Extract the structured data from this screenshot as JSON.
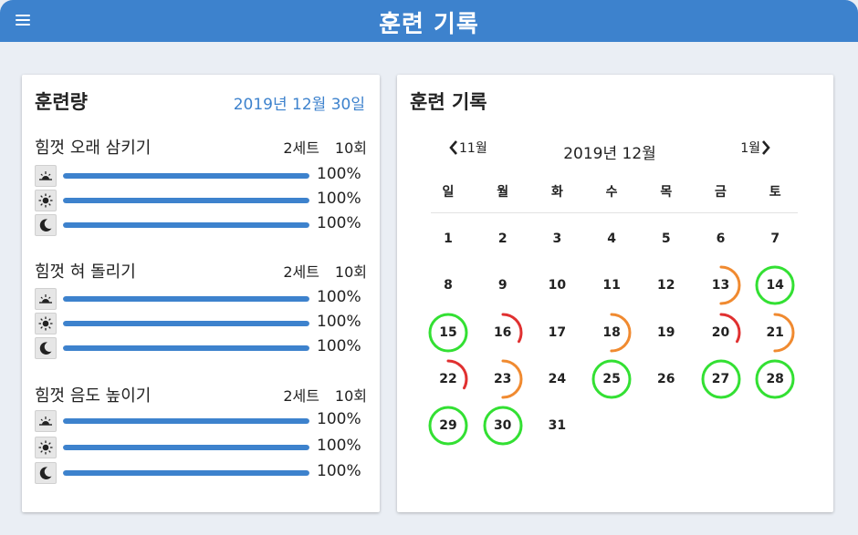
{
  "app": {
    "title": "훈련 기록"
  },
  "left": {
    "title": "훈련량",
    "date": "2019년 12월 30일",
    "exercises": [
      {
        "name": "힘껏 오래 삼키기",
        "sets": "2세트",
        "reps": "10회",
        "rows": [
          {
            "icon": "sunrise-icon",
            "label": "100%",
            "value": 1.0
          },
          {
            "icon": "sun-icon",
            "label": "100%",
            "value": 1.0
          },
          {
            "icon": "moon-icon",
            "label": "100%",
            "value": 1.0
          }
        ]
      },
      {
        "name": "힘껏 혀 돌리기",
        "sets": "2세트",
        "reps": "10회",
        "rows": [
          {
            "icon": "sunrise-icon",
            "label": "100%",
            "value": 1.0
          },
          {
            "icon": "sun-icon",
            "label": "100%",
            "value": 1.0
          },
          {
            "icon": "moon-icon",
            "label": "100%",
            "value": 1.0
          }
        ]
      },
      {
        "name": "힘껏 음도 높이기",
        "sets": "2세트",
        "reps": "10회",
        "rows": [
          {
            "icon": "sunrise-icon",
            "label": "100%",
            "value": 1.0
          },
          {
            "icon": "sun-icon",
            "label": "100%",
            "value": 1.0
          },
          {
            "icon": "moon-icon",
            "label": "100%",
            "value": 1.0
          }
        ]
      }
    ]
  },
  "right": {
    "title": "훈련 기록",
    "calendar": {
      "prev": "11월",
      "next": "1월",
      "month": "2019년 12월",
      "weekdays": [
        "일",
        "월",
        "화",
        "수",
        "목",
        "금",
        "토"
      ],
      "first_weekday": 0,
      "days_in_month": 31,
      "colors": {
        "full": "#33e033",
        "partial": "#f08a30",
        "low": "#e03030"
      },
      "progress": [
        {
          "day": 13,
          "fraction": 0.5,
          "status": "partial"
        },
        {
          "day": 14,
          "fraction": 1.0,
          "status": "full"
        },
        {
          "day": 15,
          "fraction": 1.0,
          "status": "full"
        },
        {
          "day": 16,
          "fraction": 0.33,
          "status": "low"
        },
        {
          "day": 18,
          "fraction": 0.5,
          "status": "partial"
        },
        {
          "day": 20,
          "fraction": 0.33,
          "status": "low"
        },
        {
          "day": 21,
          "fraction": 0.5,
          "status": "partial"
        },
        {
          "day": 22,
          "fraction": 0.33,
          "status": "low"
        },
        {
          "day": 23,
          "fraction": 0.5,
          "status": "partial"
        },
        {
          "day": 25,
          "fraction": 1.0,
          "status": "full"
        },
        {
          "day": 27,
          "fraction": 1.0,
          "status": "full"
        },
        {
          "day": 28,
          "fraction": 1.0,
          "status": "full"
        },
        {
          "day": 29,
          "fraction": 1.0,
          "status": "full"
        },
        {
          "day": 30,
          "fraction": 1.0,
          "status": "full"
        }
      ]
    }
  }
}
